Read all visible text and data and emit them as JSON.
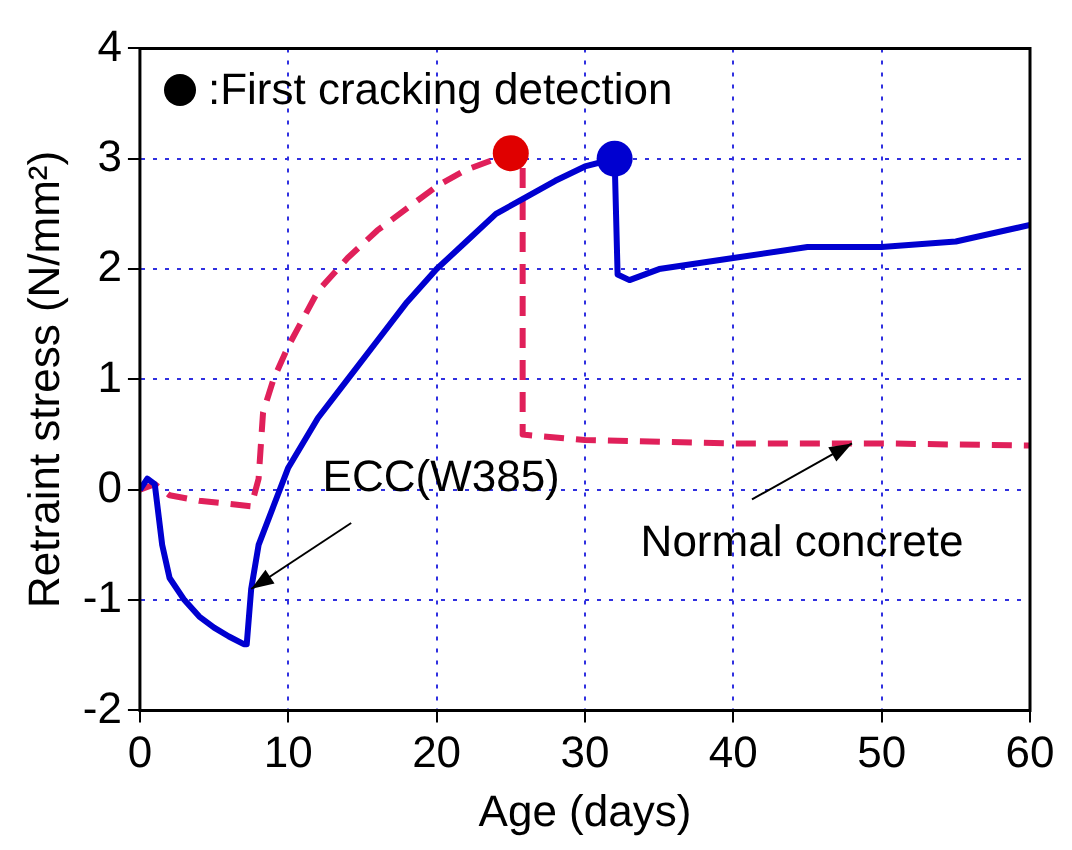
{
  "chart_data": {
    "type": "line",
    "xlabel": "Age (days)",
    "ylabel": "Retraint stress (N/mm²)",
    "xlim": [
      0,
      60
    ],
    "xticks": [
      0,
      10,
      20,
      30,
      40,
      50,
      60
    ],
    "ylim": [
      -2,
      4
    ],
    "yticks": [
      -2,
      -1,
      0,
      1,
      2,
      3,
      4
    ],
    "grid": true,
    "legend": "top left",
    "marker": "none",
    "series": [
      {
        "color": "#0000d0",
        "line_style": "solid",
        "x": [
          0,
          0.5,
          1,
          1.5,
          2,
          3,
          4,
          5,
          6,
          7,
          7.2,
          7.5,
          8,
          9,
          10,
          12,
          14,
          16,
          18,
          20,
          22,
          24,
          26,
          28,
          30,
          32,
          32.2,
          33,
          35,
          40,
          45,
          50,
          55,
          60
        ],
        "values": [
          0,
          0.1,
          0.05,
          -0.5,
          -0.8,
          -1.0,
          -1.15,
          -1.25,
          -1.33,
          -1.4,
          -1.4,
          -0.9,
          -0.5,
          -0.15,
          0.2,
          0.65,
          1.0,
          1.35,
          1.7,
          2.0,
          2.25,
          2.5,
          2.65,
          2.8,
          2.93,
          3.0,
          1.95,
          1.9,
          2.0,
          2.1,
          2.2,
          2.2,
          2.25,
          2.4
        ]
      },
      {
        "color": "#e0205a",
        "line_style": "dashed",
        "x": [
          0,
          1,
          2,
          4,
          7.5,
          8,
          8.3,
          9,
          10,
          11,
          12,
          14,
          16,
          18,
          20,
          22,
          24,
          25,
          25.8,
          25.8,
          30,
          40,
          50,
          60
        ],
        "values": [
          0,
          0.05,
          -0.05,
          -0.1,
          -0.15,
          0.1,
          0.7,
          1.0,
          1.3,
          1.55,
          1.8,
          2.1,
          2.35,
          2.55,
          2.75,
          2.9,
          3.0,
          3.05,
          3.0,
          0.5,
          0.45,
          0.42,
          0.42,
          0.4
        ]
      },
      {
        "type": "scatter",
        "name": ":First cracking detection",
        "color": "#000000",
        "colors": [
          "#e00000",
          "#0000d0"
        ],
        "marker": "circle",
        "x": [
          25,
          32
        ],
        "values": [
          3.05,
          3.0
        ]
      }
    ],
    "annotations": [
      {
        "text": "ECC(W385)",
        "x": 7.5,
        "y": -0.9
      },
      {
        "text": "Normal concrete",
        "x": 48,
        "y": 0.42
      }
    ]
  }
}
